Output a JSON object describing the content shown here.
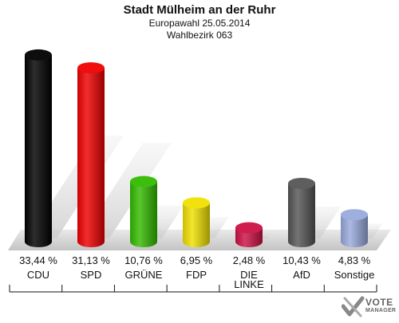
{
  "header": {
    "title": "Stadt Mülheim an der Ruhr",
    "subtitle1": "Europawahl 25.05.2014",
    "subtitle2": "Wahlbezirk 063"
  },
  "chart_data": {
    "type": "bar",
    "title": "Stadt Mülheim an der Ruhr",
    "subtitle": "Europawahl 25.05.2014 · Wahlbezirk 063",
    "categories": [
      "CDU",
      "SPD",
      "GRÜNE",
      "FDP",
      "DIE LINKE",
      "AfD",
      "Sonstige"
    ],
    "values": [
      33.44,
      31.13,
      10.76,
      6.95,
      2.48,
      10.43,
      4.83
    ],
    "value_labels": [
      "33,44 %",
      "31,13 %",
      "10,76 %",
      "6,95 %",
      "2,48 %",
      "10,43 %",
      "4,83 %"
    ],
    "colors": [
      "#000000",
      "#ee0000",
      "#33bb00",
      "#f0e000",
      "#cc1144",
      "#555555",
      "#99aadd"
    ],
    "xlabel": "",
    "ylabel": "",
    "grid": false,
    "legend": "none"
  },
  "logo": {
    "line1": "VOTE",
    "line2": "MANAGER"
  }
}
